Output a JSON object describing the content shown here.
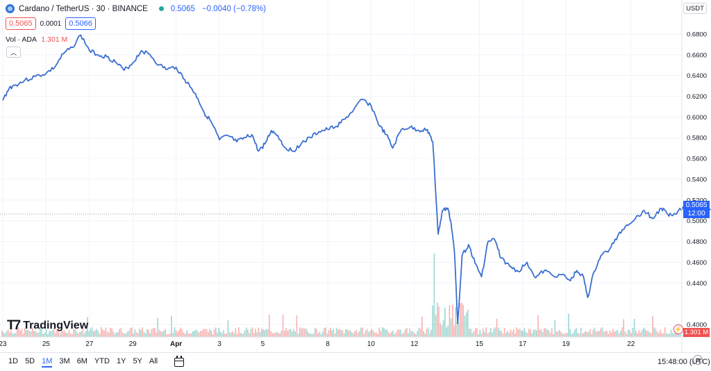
{
  "header": {
    "symbol_title": "Cardano / TetherUS · 30 · BINANCE",
    "last_price": "0.5065",
    "change": "−0.0040 (−0.78%)",
    "sell_price": "0.5065",
    "spread": "0.0001",
    "buy_price": "0.5066",
    "volume_label": "Vol · ADA",
    "volume_value": "1.301 M",
    "currency": "USDT"
  },
  "logo_text": "TradingView",
  "price_badge": {
    "price": "0.5065",
    "countdown": "12:00"
  },
  "volume_badge": "1.301 M",
  "bottom_bar": {
    "ranges": [
      "1D",
      "5D",
      "1M",
      "3M",
      "6M",
      "YTD",
      "1Y",
      "5Y",
      "All"
    ],
    "active_range": "1M",
    "clock": "15:48:00 (UTC)"
  },
  "colors": {
    "line": "#3a6ed0",
    "badge_blue": "#2962ff",
    "volume_up": "#26a69a",
    "volume_down": "#ef5350",
    "grid": "#f0f3fa"
  },
  "chart_data": {
    "type": "line",
    "title": "Cardano / TetherUS · 30 · BINANCE",
    "xlabel": "",
    "ylabel": "",
    "x_tick_labels": [
      "23",
      "25",
      "27",
      "29",
      "Apr",
      "3",
      "5",
      "8",
      "10",
      "12",
      "15",
      "17",
      "19",
      "22"
    ],
    "y_tick_labels": [
      "0.6800",
      "0.6600",
      "0.6400",
      "0.6200",
      "0.6000",
      "0.5800",
      "0.5600",
      "0.5400",
      "0.5200",
      "0.5000",
      "0.4800",
      "0.4600",
      "0.4400",
      "0.4000"
    ],
    "ylim": [
      0.396,
      0.696
    ],
    "grid": true,
    "series": [
      {
        "values_x_day": [
          23.0,
          23.3,
          23.6,
          24.0,
          24.5,
          25.0,
          25.4,
          25.8,
          26.2,
          26.6,
          27.0,
          27.4,
          27.8,
          28.2,
          28.6,
          29.0,
          29.4,
          29.8,
          30.2,
          30.6,
          31.0,
          31.4,
          31.7,
          32.0,
          32.3,
          32.6,
          33.0,
          33.4,
          33.8,
          34.2,
          34.5,
          34.8,
          35.1,
          35.4,
          35.7,
          36.0,
          36.4,
          36.8,
          37.2,
          37.6,
          38.0,
          38.4,
          38.8,
          39.2,
          39.6,
          40.0,
          40.4,
          40.7,
          41.0,
          41.4,
          41.8,
          42.2,
          42.6,
          42.85,
          42.95,
          43.1,
          43.3,
          43.55,
          43.7,
          43.85,
          44.0,
          44.2,
          44.5,
          44.8,
          45.1,
          45.4,
          45.7,
          46.0,
          46.4,
          46.8,
          47.2,
          47.6,
          48.0,
          48.4,
          48.8,
          49.2,
          49.5,
          49.8,
          50.0,
          50.3,
          50.6,
          51.0,
          51.4,
          51.8,
          52.2,
          52.6,
          53.0,
          53.4,
          53.7,
          54.0,
          54.5,
          55.0,
          55.5,
          56.0,
          56.4,
          56.8
        ],
        "values": [
          0.616,
          0.628,
          0.631,
          0.635,
          0.639,
          0.642,
          0.648,
          0.661,
          0.667,
          0.679,
          0.664,
          0.66,
          0.658,
          0.653,
          0.645,
          0.652,
          0.664,
          0.66,
          0.65,
          0.646,
          0.648,
          0.636,
          0.628,
          0.618,
          0.604,
          0.596,
          0.578,
          0.582,
          0.576,
          0.58,
          0.583,
          0.567,
          0.574,
          0.587,
          0.582,
          0.571,
          0.567,
          0.575,
          0.58,
          0.586,
          0.588,
          0.591,
          0.598,
          0.607,
          0.617,
          0.611,
          0.591,
          0.583,
          0.57,
          0.588,
          0.59,
          0.587,
          0.588,
          0.576,
          0.54,
          0.487,
          0.51,
          0.512,
          0.497,
          0.47,
          0.401,
          0.466,
          0.477,
          0.459,
          0.446,
          0.48,
          0.482,
          0.464,
          0.456,
          0.451,
          0.46,
          0.445,
          0.452,
          0.447,
          0.448,
          0.442,
          0.452,
          0.446,
          0.426,
          0.451,
          0.466,
          0.472,
          0.486,
          0.496,
          0.502,
          0.51,
          0.502,
          0.512,
          0.506,
          0.507,
          0.514,
          0.519,
          0.512,
          0.514,
          0.508,
          0.5065
        ]
      }
    ],
    "current_price": 0.5065
  }
}
